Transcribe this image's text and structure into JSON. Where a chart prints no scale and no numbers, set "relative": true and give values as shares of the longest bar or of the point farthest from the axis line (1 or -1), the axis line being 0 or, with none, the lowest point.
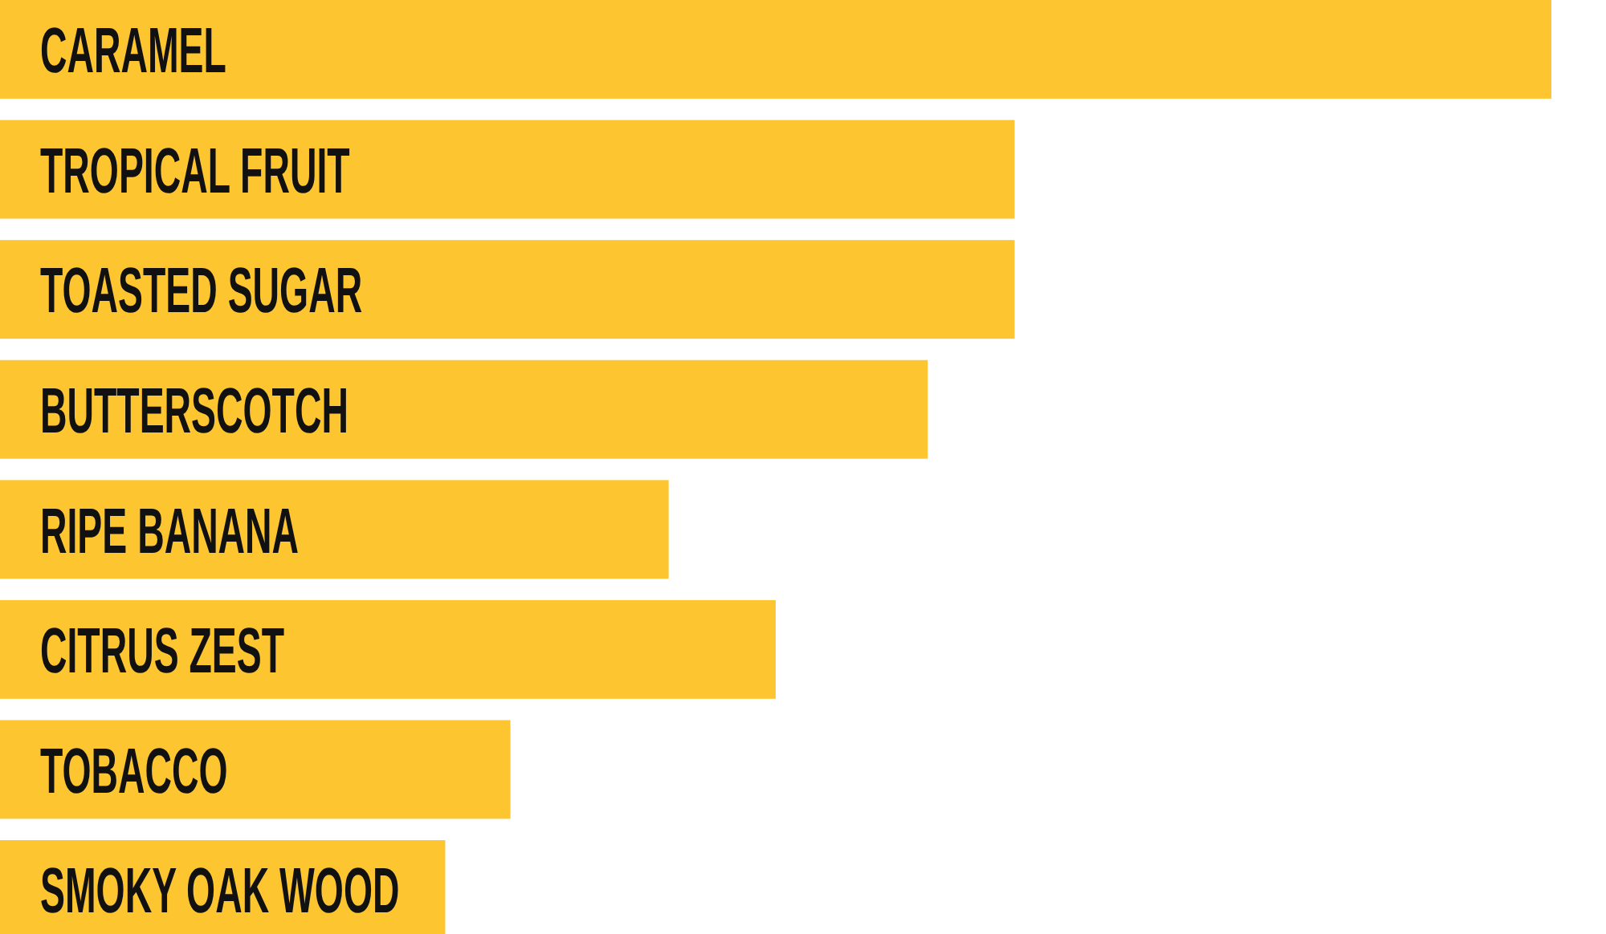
{
  "chart_data": {
    "type": "bar",
    "orientation": "horizontal",
    "relative": true,
    "categories": [
      "CARAMEL",
      "TROPICAL FRUIT",
      "TOASTED SUGAR",
      "BUTTERSCOTCH",
      "RIPE BANANA",
      "CITRUS ZEST",
      "TOBACCO",
      "SMOKY OAK WOOD"
    ],
    "values": [
      1,
      0.654,
      0.654,
      0.598,
      0.431,
      0.5,
      0.329,
      0.287
    ],
    "color": "#fdc530"
  }
}
